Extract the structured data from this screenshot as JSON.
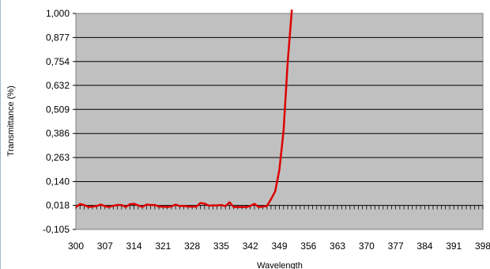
{
  "chart_data": {
    "type": "line",
    "title": "",
    "xlabel": "Wavelength",
    "ylabel": "Transmittance (%)",
    "x_tick_labels": [
      "300",
      "307",
      "314",
      "321",
      "328",
      "335",
      "342",
      "349",
      "356",
      "363",
      "370",
      "377",
      "384",
      "391",
      "398"
    ],
    "y_tick_labels": [
      "1,000",
      "0,877",
      "0,754",
      "0,632",
      "0,509",
      "0,386",
      "0,263",
      "0,140",
      "0,018",
      "-0,105"
    ],
    "xlim": [
      300,
      398
    ],
    "ylim": [
      -0.105,
      1.0
    ],
    "y_ticks": [
      1.0,
      0.877,
      0.754,
      0.632,
      0.509,
      0.386,
      0.263,
      0.14,
      0.018,
      -0.105
    ],
    "grid": true,
    "legend": "none",
    "colors": {
      "plot_background": "#c0c0c0",
      "series_line": "#dd0000",
      "gridline": "#000000"
    },
    "series": [
      {
        "name": "",
        "x": [
          300,
          301,
          302,
          303,
          304,
          305,
          306,
          307,
          308,
          309,
          310,
          311,
          312,
          313,
          314,
          315,
          316,
          317,
          318,
          319,
          320,
          321,
          322,
          323,
          324,
          325,
          326,
          327,
          328,
          329,
          330,
          331,
          332,
          333,
          334,
          335,
          336,
          337,
          338,
          339,
          340,
          341,
          342,
          343,
          344,
          345,
          346,
          347,
          348,
          349,
          350,
          351,
          352
        ],
        "y": [
          0.009,
          0.025,
          0.02,
          0.01,
          0.012,
          0.015,
          0.022,
          0.014,
          0.01,
          0.016,
          0.02,
          0.02,
          0.01,
          0.024,
          0.026,
          0.018,
          0.01,
          0.022,
          0.02,
          0.02,
          0.012,
          0.012,
          0.01,
          0.013,
          0.022,
          0.015,
          0.016,
          0.012,
          0.012,
          0.012,
          0.03,
          0.027,
          0.017,
          0.018,
          0.018,
          0.02,
          0.014,
          0.034,
          0.01,
          0.01,
          0.01,
          0.01,
          0.015,
          0.026,
          0.01,
          0.012,
          0.015,
          0.05,
          0.09,
          0.2,
          0.4,
          0.75,
          1.02
        ]
      }
    ]
  }
}
